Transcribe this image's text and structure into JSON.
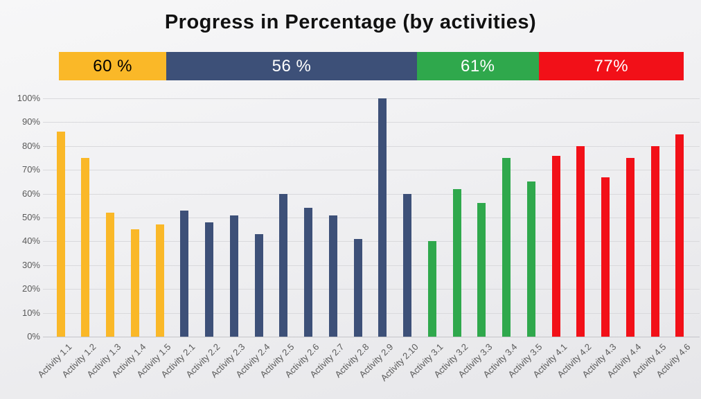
{
  "title": "Progress in Percentage (by activities)",
  "banner": {
    "segments": [
      {
        "label": "60 %",
        "color": "#FAB828",
        "text_color": "#000000",
        "width_pct": 17.2
      },
      {
        "label": "56 %",
        "color": "#3D5078",
        "text_color": "#FFFFFF",
        "width_pct": 40.1
      },
      {
        "label": "61%",
        "color": "#2FA84C",
        "text_color": "#FFFFFF",
        "width_pct": 19.5
      },
      {
        "label": "77%",
        "color": "#F21018",
        "text_color": "#FFFFFF",
        "width_pct": 23.2
      }
    ]
  },
  "chart_data": {
    "type": "bar",
    "title": "Progress in Percentage (by activities)",
    "categories": [
      "Activity 1.1",
      "Activity 1.2",
      "Activity 1.3",
      "Activity 1.4",
      "Activity 1.5",
      "Activity 2.1",
      "Activity 2.2",
      "Activity 2.3",
      "Activity 2.4",
      "Activity 2.5",
      "Activity 2.6",
      "Activity 2.7",
      "Activity 2.8",
      "Activity 2.9",
      "Activity 2.10",
      "Activity 3.1",
      "Activity 3.2",
      "Activity 3.3",
      "Activity 3.4",
      "Activity 3.5",
      "Activity 4.1",
      "Activity 4.2",
      "Activity 4.3",
      "Activity 4.4",
      "Activity 4.5",
      "Activity 4.6"
    ],
    "values": [
      86,
      75,
      52,
      45,
      47,
      53,
      48,
      51,
      43,
      60,
      54,
      51,
      41,
      100,
      60,
      40,
      62,
      56,
      75,
      65,
      76,
      80,
      67,
      75,
      80,
      85
    ],
    "groups": [
      {
        "id": "1",
        "banner_label": "60 %",
        "color": "#FAB828"
      },
      {
        "id": "2",
        "banner_label": "56 %",
        "color": "#3D5078"
      },
      {
        "id": "3",
        "banner_label": "61%",
        "color": "#2FA84C"
      },
      {
        "id": "4",
        "banner_label": "77%",
        "color": "#F21018"
      }
    ],
    "xlabel": "",
    "ylabel": "",
    "ylim": [
      0,
      100
    ],
    "ytick_step": 10,
    "ytick_labels": [
      "0%",
      "10%",
      "20%",
      "30%",
      "40%",
      "50%",
      "60%",
      "70%",
      "80%",
      "90%",
      "100%"
    ],
    "grid": true,
    "legend": "none"
  }
}
